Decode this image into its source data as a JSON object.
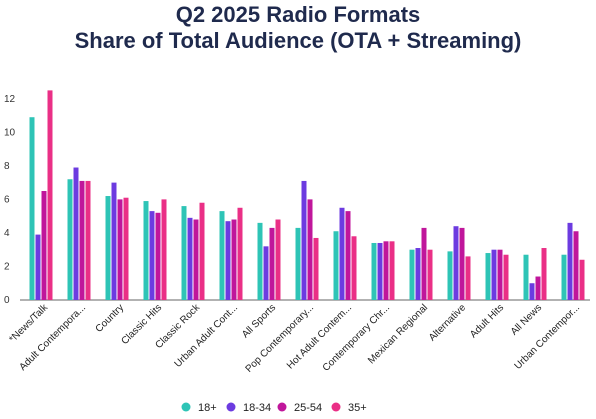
{
  "title_lines": [
    "Q2 2025 Radio Formats",
    "Share of Total Audience (OTA + Streaming)"
  ],
  "chart_data": {
    "type": "bar",
    "title": "Q2 2025 Radio Formats\nShare of Total Audience (OTA + Streaming)",
    "categories": [
      "*News/Talk",
      "Adult Contempora...",
      "Country",
      "Classic Hits",
      "Classic Rock",
      "Urban Adult Cont...",
      "All Sports",
      "Pop Contemporary...",
      "Hot Adult Contem...",
      "Contemporary Chr...",
      "Mexican Regional",
      "Alternative",
      "Adult Hits",
      "All News",
      "Urban Contempor..."
    ],
    "series": [
      {
        "name": "18+",
        "color": "#2ec4b6",
        "values": [
          10.9,
          7.2,
          6.2,
          5.9,
          5.6,
          5.3,
          4.6,
          4.3,
          4.1,
          3.4,
          3.0,
          2.9,
          2.8,
          2.7,
          2.7
        ]
      },
      {
        "name": "18-34",
        "color": "#6c3be0",
        "values": [
          3.9,
          7.9,
          7.0,
          5.3,
          4.9,
          4.7,
          3.2,
          7.1,
          5.5,
          3.4,
          3.1,
          4.4,
          3.0,
          1.0,
          4.6
        ]
      },
      {
        "name": "25-54",
        "color": "#c0169b",
        "values": [
          6.5,
          7.1,
          6.0,
          5.2,
          4.8,
          4.8,
          4.3,
          6.0,
          5.3,
          3.5,
          4.3,
          4.3,
          3.0,
          1.4,
          4.1
        ]
      },
      {
        "name": "35+",
        "color": "#ea2f86",
        "values": [
          12.5,
          7.1,
          6.1,
          6.0,
          5.8,
          5.5,
          4.8,
          3.7,
          3.8,
          3.5,
          3.0,
          2.6,
          2.7,
          3.1,
          2.4
        ]
      }
    ],
    "ylim": [
      0,
      13
    ],
    "yticks": [
      0,
      2,
      4,
      6,
      8,
      10,
      12
    ],
    "xlabel": "",
    "ylabel": "",
    "grid": false,
    "legend_position": "bottom"
  }
}
